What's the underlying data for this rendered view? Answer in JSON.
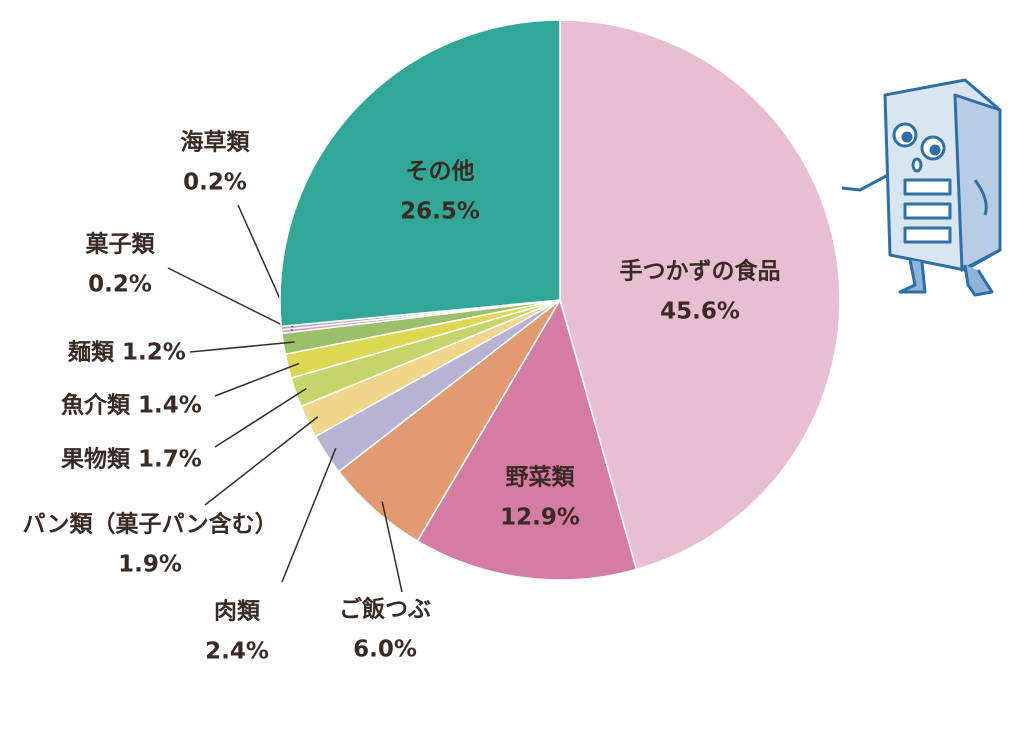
{
  "chart_data": {
    "type": "pie",
    "categories": [
      "手つかずの食品",
      "野菜類",
      "ご飯つぶ",
      "肉類",
      "パン類（菓子パン含む）",
      "果物類",
      "魚介類",
      "麺類",
      "菓子類",
      "海草類",
      "その他"
    ],
    "values": [
      45.6,
      12.9,
      6.0,
      2.4,
      1.9,
      1.7,
      1.4,
      1.2,
      0.2,
      0.2,
      26.5
    ],
    "value_labels": [
      "45.6%",
      "12.9%",
      "6.0%",
      "2.4%",
      "1.9%",
      "1.7%",
      "1.4%",
      "1.2%",
      "0.2%",
      "0.2%",
      "26.5%"
    ],
    "colors": [
      "#e8bed2",
      "#d47ca3",
      "#e29b70",
      "#b9b3d3",
      "#efd68b",
      "#c6d46c",
      "#dcd852",
      "#9bbf6a",
      "#d99bbb",
      "#b8a8cf",
      "#31a897"
    ]
  }
}
